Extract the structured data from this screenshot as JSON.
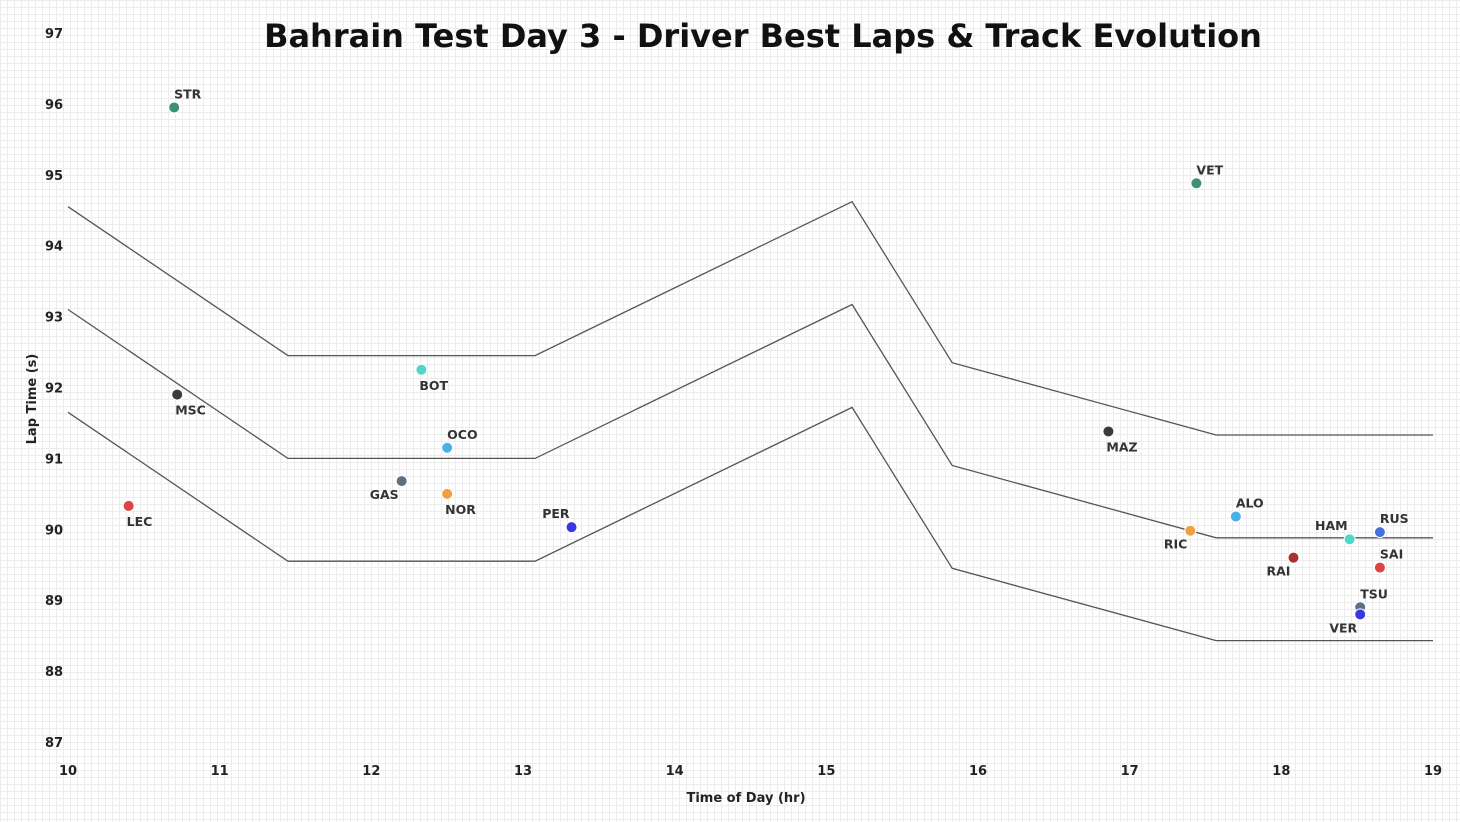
{
  "chart_data": {
    "type": "scatter",
    "title": "Bahrain Test Day 3 - Driver Best Laps & Track Evolution",
    "xlabel": "Time of Day (hr)",
    "ylabel": "Lap Time (s)",
    "xlim": [
      10,
      19
    ],
    "ylim": [
      86.7,
      97.1
    ],
    "xticks": [
      "10",
      "11",
      "12",
      "13",
      "14",
      "15",
      "16",
      "17",
      "18",
      "19"
    ],
    "yticks": [
      "87",
      "88",
      "89",
      "90",
      "91",
      "92",
      "93",
      "94",
      "95",
      "96",
      "97"
    ],
    "grid": true,
    "points": [
      {
        "label": "STR",
        "x": 10.7,
        "y": 95.95,
        "color": "#3e8f7a",
        "label_pos": "above-right"
      },
      {
        "label": "MSC",
        "x": 10.72,
        "y": 91.9,
        "color": "#3b3b3b",
        "label_pos": "below-right"
      },
      {
        "label": "LEC",
        "x": 10.4,
        "y": 90.33,
        "color": "#dd4444",
        "label_pos": "below-right"
      },
      {
        "label": "BOT",
        "x": 12.33,
        "y": 92.25,
        "color": "#4fd6c8",
        "label_pos": "below-right"
      },
      {
        "label": "OCO",
        "x": 12.5,
        "y": 91.15,
        "color": "#4ab0ec",
        "label_pos": "above-right"
      },
      {
        "label": "GAS",
        "x": 12.2,
        "y": 90.68,
        "color": "#5f6f82",
        "label_pos": "below-left"
      },
      {
        "label": "NOR",
        "x": 12.5,
        "y": 90.5,
        "color": "#f0a040",
        "label_pos": "below-right"
      },
      {
        "label": "PER",
        "x": 13.32,
        "y": 90.03,
        "color": "#3838dd",
        "label_pos": "above-left"
      },
      {
        "label": "VET",
        "x": 17.44,
        "y": 94.88,
        "color": "#3e8f7a",
        "label_pos": "above-right"
      },
      {
        "label": "MAZ",
        "x": 16.86,
        "y": 91.38,
        "color": "#3b3b3b",
        "label_pos": "below-right"
      },
      {
        "label": "RIC",
        "x": 17.4,
        "y": 89.98,
        "color": "#f0a040",
        "label_pos": "below-left"
      },
      {
        "label": "ALO",
        "x": 17.7,
        "y": 90.18,
        "color": "#4ab0ec",
        "label_pos": "above-right"
      },
      {
        "label": "HAM",
        "x": 18.45,
        "y": 89.86,
        "color": "#4fd6c8",
        "label_pos": "above-left"
      },
      {
        "label": "RUS",
        "x": 18.65,
        "y": 89.96,
        "color": "#4870e0",
        "label_pos": "above-right"
      },
      {
        "label": "RAI",
        "x": 18.08,
        "y": 89.6,
        "color": "#a83232",
        "label_pos": "below-left"
      },
      {
        "label": "SAI",
        "x": 18.65,
        "y": 89.46,
        "color": "#dd4444",
        "label_pos": "above-right"
      },
      {
        "label": "TSU",
        "x": 18.52,
        "y": 88.9,
        "color": "#5f6f82",
        "label_pos": "above-right"
      },
      {
        "label": "VER",
        "x": 18.52,
        "y": 88.8,
        "color": "#3838dd",
        "label_pos": "below-left"
      }
    ],
    "track_evolution_lines": [
      {
        "x": [
          10,
          11.45,
          13.08,
          15.17,
          15.83,
          17.57,
          19
        ],
        "y": [
          94.55,
          92.45,
          92.45,
          94.62,
          92.35,
          91.33,
          91.33
        ]
      },
      {
        "x": [
          10,
          11.45,
          13.08,
          15.17,
          15.83,
          17.57,
          19
        ],
        "y": [
          93.1,
          91.0,
          91.0,
          93.17,
          90.9,
          89.88,
          89.88
        ]
      },
      {
        "x": [
          10,
          11.45,
          13.08,
          15.17,
          15.83,
          17.57,
          19
        ],
        "y": [
          91.65,
          89.55,
          89.55,
          91.72,
          89.45,
          88.43,
          88.43
        ]
      }
    ]
  }
}
